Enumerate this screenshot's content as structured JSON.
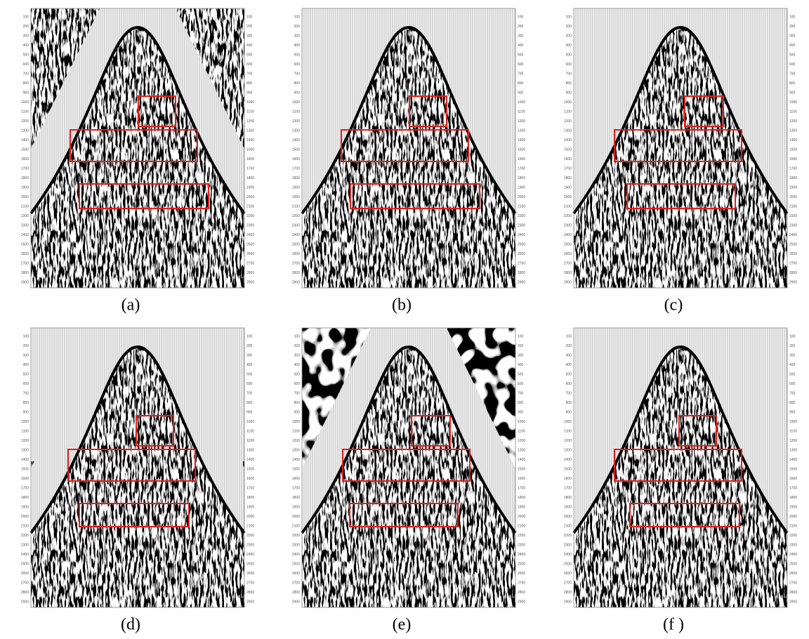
{
  "panels": [
    {
      "caption": "(a)"
    },
    {
      "caption": "(b)"
    },
    {
      "caption": "(c)"
    },
    {
      "caption": "(d)"
    },
    {
      "caption": "(e)"
    },
    {
      "caption": "(f )"
    }
  ],
  "depth_ticks": [
    100,
    200,
    300,
    400,
    500,
    600,
    700,
    800,
    900,
    1000,
    1100,
    1200,
    1300,
    1400,
    1500,
    1600,
    1700,
    1800,
    1900,
    2000,
    2100,
    2200,
    2300,
    2400,
    2500,
    2600,
    2700,
    2800,
    2900
  ]
}
